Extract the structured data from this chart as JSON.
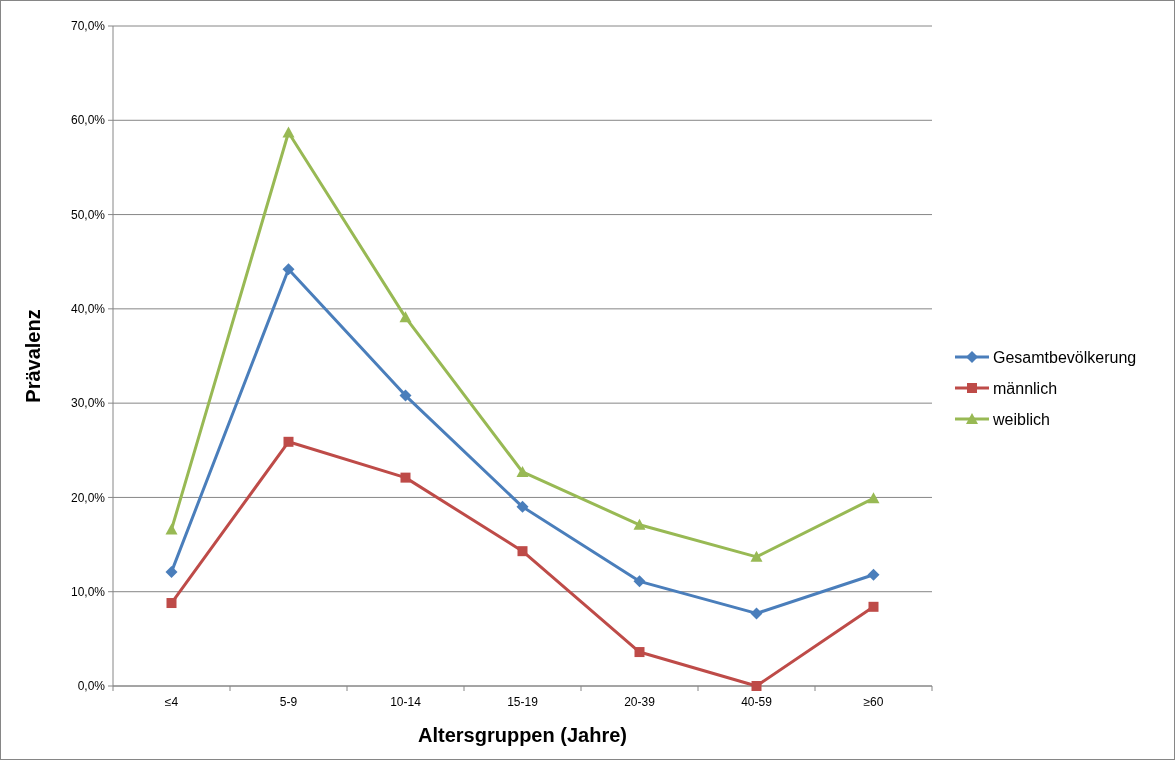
{
  "chart_data": {
    "type": "line",
    "xlabel": "Altersgruppen (Jahre)",
    "ylabel": "Prävalenz",
    "categories": [
      "≤4",
      "5-9",
      "10-14",
      "15-19",
      "20-39",
      "40-59",
      "≥60"
    ],
    "series": [
      {
        "name": "Gesamtbevölkerung",
        "color": "#4a7ebb",
        "marker": "diamond",
        "values": [
          12.1,
          44.2,
          30.8,
          19.0,
          11.1,
          7.7,
          11.8
        ]
      },
      {
        "name": "männlich",
        "color": "#be4b48",
        "marker": "square",
        "values": [
          8.8,
          25.9,
          22.1,
          14.3,
          3.6,
          0,
          8.4
        ]
      },
      {
        "name": "weiblich",
        "color": "#98b954",
        "marker": "triangle",
        "values": [
          16.6,
          58.7,
          39.1,
          22.7,
          17.1,
          13.7,
          19.9
        ]
      }
    ],
    "ylim": [
      0,
      70
    ],
    "yticks": [
      {
        "value": 0,
        "label": "0,0%"
      },
      {
        "value": 10,
        "label": "10,0%"
      },
      {
        "value": 20,
        "label": "20,0%"
      },
      {
        "value": 30,
        "label": "30,0%"
      },
      {
        "value": 40,
        "label": "40,0%"
      },
      {
        "value": 50,
        "label": "50,0%"
      },
      {
        "value": 60,
        "label": "60,0%"
      },
      {
        "value": 70,
        "label": "70,0%"
      }
    ],
    "grid": "y",
    "legend": "right",
    "line_style": "solid"
  }
}
